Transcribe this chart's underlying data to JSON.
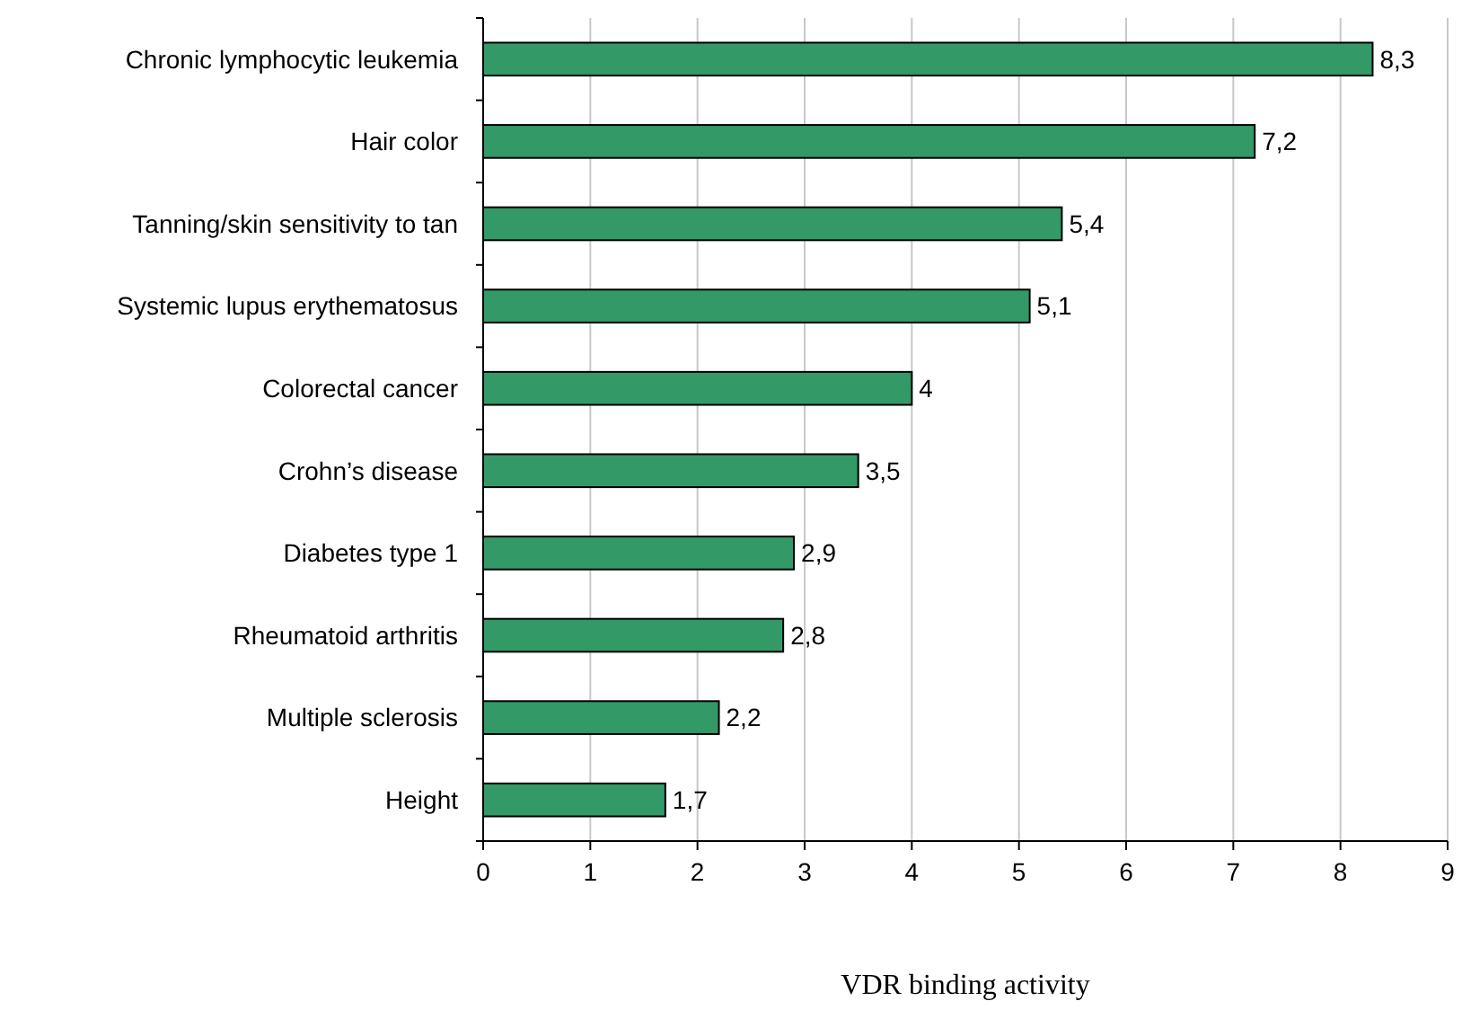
{
  "chart_data": {
    "type": "bar",
    "orientation": "horizontal",
    "xlabel": "VDR binding activity",
    "categories": [
      "Chronic lymphocytic leukemia",
      "Hair color",
      "Tanning/skin sensitivity to tan",
      "Systemic lupus erythematosus",
      "Colorectal cancer",
      "Crohn’s disease",
      "Diabetes type 1",
      "Rheumatoid arthritis",
      "Multiple sclerosis",
      "Height"
    ],
    "values": [
      8.3,
      7.2,
      5.4,
      5.1,
      4,
      3.5,
      2.9,
      2.8,
      2.2,
      1.7
    ],
    "value_labels": [
      "8,3",
      "7,2",
      "5,4",
      "5,1",
      "4",
      "3,5",
      "2,9",
      "2,8",
      "2,2",
      "1,7"
    ],
    "color": "#339966",
    "xlim": [
      0,
      9
    ],
    "xticks": [
      0,
      1,
      2,
      3,
      4,
      5,
      6,
      7,
      8,
      9
    ],
    "grid": "x"
  }
}
